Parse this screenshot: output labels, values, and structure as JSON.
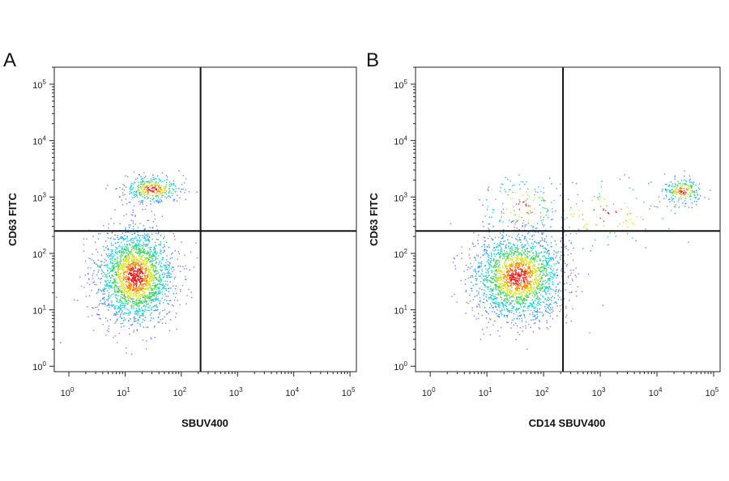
{
  "chart_data": [
    {
      "type": "scatter",
      "panel": "A",
      "xlabel": "SBUV400",
      "ylabel": "CD63 FITC",
      "x_scale": "log",
      "y_scale": "log",
      "xlim": [
        0.55,
        130000
      ],
      "ylim": [
        0.8,
        200000
      ],
      "x_ticks": [
        {
          "base": "10",
          "exp": "0"
        },
        {
          "base": "10",
          "exp": "1"
        },
        {
          "base": "10",
          "exp": "2"
        },
        {
          "base": "10",
          "exp": "3"
        },
        {
          "base": "10",
          "exp": "4"
        },
        {
          "base": "10",
          "exp": "5"
        }
      ],
      "y_ticks": [
        {
          "base": "10",
          "exp": "0"
        },
        {
          "base": "10",
          "exp": "1"
        },
        {
          "base": "10",
          "exp": "2"
        },
        {
          "base": "10",
          "exp": "3"
        },
        {
          "base": "10",
          "exp": "4"
        },
        {
          "base": "10",
          "exp": "5"
        }
      ],
      "quadrant_gate": {
        "x": 220,
        "y": 250
      },
      "populations": [
        {
          "name": "",
          "center_x": 15,
          "center_y": 40,
          "spread_log_x": 0.34,
          "spread_log_y": 0.42,
          "share": 0.86
        },
        {
          "name": "",
          "center_x": 30,
          "center_y": 1400,
          "spread_log_x": 0.25,
          "spread_log_y": 0.12,
          "share": 0.14
        }
      ],
      "grid": false,
      "density_colors": [
        "#1a1ad6",
        "#1e90ff",
        "#00d0d0",
        "#30d050",
        "#d8e010",
        "#ff8000",
        "#e81010"
      ]
    },
    {
      "type": "scatter",
      "panel": "B",
      "xlabel": "CD14 SBUV400",
      "ylabel": "CD63 FITC",
      "x_scale": "log",
      "y_scale": "log",
      "xlim": [
        0.55,
        130000
      ],
      "ylim": [
        0.8,
        200000
      ],
      "x_ticks": [
        {
          "base": "10",
          "exp": "0"
        },
        {
          "base": "10",
          "exp": "1"
        },
        {
          "base": "10",
          "exp": "2"
        },
        {
          "base": "10",
          "exp": "3"
        },
        {
          "base": "10",
          "exp": "4"
        },
        {
          "base": "10",
          "exp": "5"
        }
      ],
      "y_ticks": [
        {
          "base": "10",
          "exp": "0"
        },
        {
          "base": "10",
          "exp": "1"
        },
        {
          "base": "10",
          "exp": "2"
        },
        {
          "base": "10",
          "exp": "3"
        },
        {
          "base": "10",
          "exp": "4"
        },
        {
          "base": "10",
          "exp": "5"
        }
      ],
      "quadrant_gate": {
        "x": 220,
        "y": 250
      },
      "populations": [
        {
          "name": "",
          "center_x": 35,
          "center_y": 40,
          "spread_log_x": 0.4,
          "spread_log_y": 0.38,
          "share": 0.82
        },
        {
          "name": "",
          "center_x": 28000,
          "center_y": 1300,
          "spread_log_x": 0.17,
          "spread_log_y": 0.12,
          "share": 0.08
        },
        {
          "name": "",
          "center_x": 1200,
          "center_y": 500,
          "spread_log_x": 0.7,
          "spread_log_y": 0.3,
          "share": 0.05
        },
        {
          "name": "",
          "center_x": 40,
          "center_y": 700,
          "spread_log_x": 0.35,
          "spread_log_y": 0.28,
          "share": 0.05
        }
      ],
      "grid": false,
      "density_colors": [
        "#1a1ad6",
        "#1e90ff",
        "#00d0d0",
        "#30d050",
        "#d8e010",
        "#ff8000",
        "#e81010"
      ]
    }
  ]
}
